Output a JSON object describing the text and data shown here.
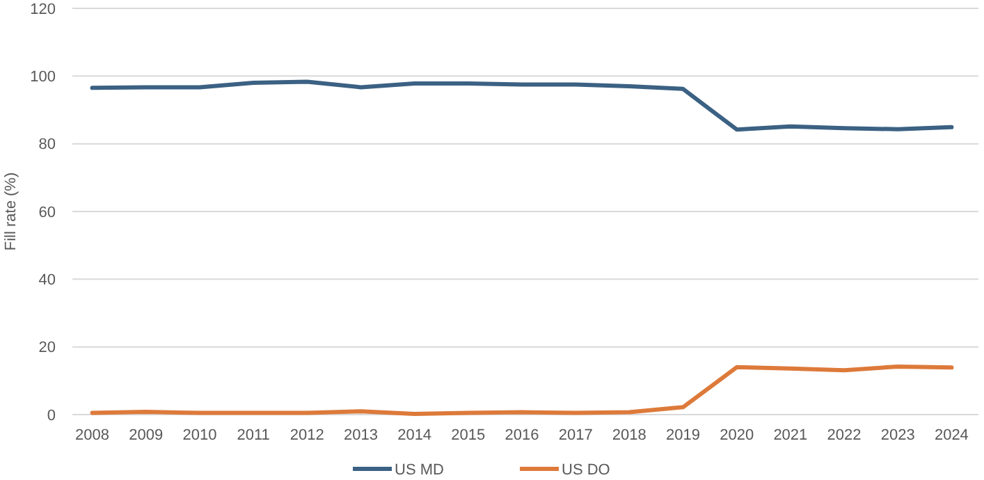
{
  "chart_data": {
    "type": "line",
    "ylabel": "Fill rate (%)",
    "categories": [
      "2008",
      "2009",
      "2010",
      "2011",
      "2012",
      "2013",
      "2014",
      "2015",
      "2016",
      "2017",
      "2018",
      "2019",
      "2020",
      "2021",
      "2022",
      "2023",
      "2024"
    ],
    "series": [
      {
        "name": "US MD",
        "color": "#3b6183",
        "values": [
          96.5,
          96.7,
          96.7,
          98,
          98.3,
          96.7,
          97.8,
          97.8,
          97.5,
          97.5,
          97,
          96.2,
          84.2,
          85.1,
          84.6,
          84.3,
          84.9
        ]
      },
      {
        "name": "US DO",
        "color": "#dd7a3a",
        "values": [
          0.5,
          0.8,
          0.5,
          0.5,
          0.5,
          1,
          0.2,
          0.5,
          0.7,
          0.5,
          0.7,
          2.2,
          14,
          13.6,
          13.1,
          14.2,
          13.9
        ]
      }
    ],
    "ylim": [
      0,
      120
    ],
    "yticks": [
      0,
      20,
      40,
      60,
      80,
      100,
      120
    ],
    "grid": "y",
    "legend": "bottom",
    "marker": "none",
    "line_style": "solid"
  }
}
